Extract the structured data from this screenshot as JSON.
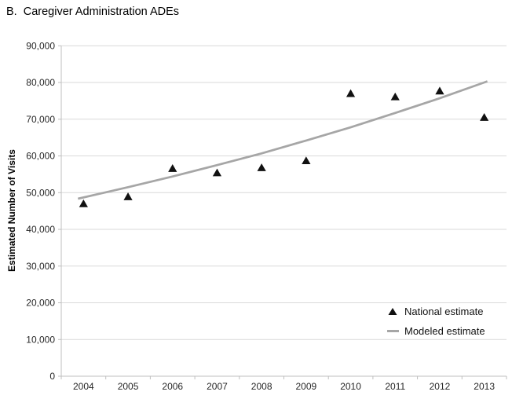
{
  "colors": {
    "grid": "#d9d9d9",
    "axis": "#bfbfbf",
    "tick_text": "#262626",
    "title_text": "#000000",
    "marker": "#111111",
    "model_line": "#a6a6a6"
  },
  "chart_data": {
    "type": "scatter",
    "title": "B.  Caregiver Administration ADEs",
    "xlabel": "",
    "ylabel": "Estimated Number of Visits",
    "categories": [
      "2004",
      "2005",
      "2006",
      "2007",
      "2008",
      "2009",
      "2010",
      "2011",
      "2012",
      "2013"
    ],
    "series": [
      {
        "name": "National estimate",
        "type": "scatter",
        "marker": "triangle",
        "color": "#111111",
        "values": [
          47000,
          48900,
          56600,
          55400,
          56800,
          58700,
          77000,
          76100,
          77700,
          70500
        ]
      },
      {
        "name": "Modeled estimate",
        "type": "line",
        "color": "#a6a6a6",
        "values": [
          48700,
          51500,
          54400,
          57500,
          60700,
          64200,
          67800,
          71700,
          75700,
          80000
        ]
      }
    ],
    "ylim": [
      0,
      90000
    ],
    "ytick_step": 10000,
    "ytick_labels": [
      "0",
      "10,000",
      "20,000",
      "30,000",
      "40,000",
      "50,000",
      "60,000",
      "70,000",
      "80,000",
      "90,000"
    ],
    "grid": true,
    "legend_position": "inside-bottom-right"
  }
}
